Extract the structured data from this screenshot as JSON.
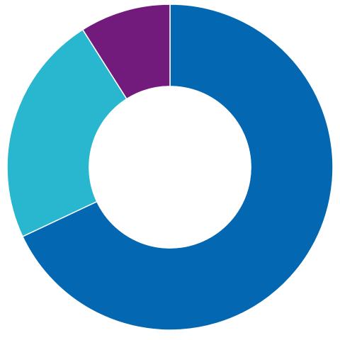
{
  "chart_data": {
    "type": "pie",
    "variant": "donut",
    "slice_order": "clockwise-from-top",
    "slices": [
      {
        "value": 68,
        "color": "#0368B1"
      },
      {
        "value": 23,
        "color": "#29B6CF"
      },
      {
        "value": 9,
        "color": "#731A7D"
      }
    ],
    "title": "",
    "legend": "none",
    "data_labels": "none"
  }
}
